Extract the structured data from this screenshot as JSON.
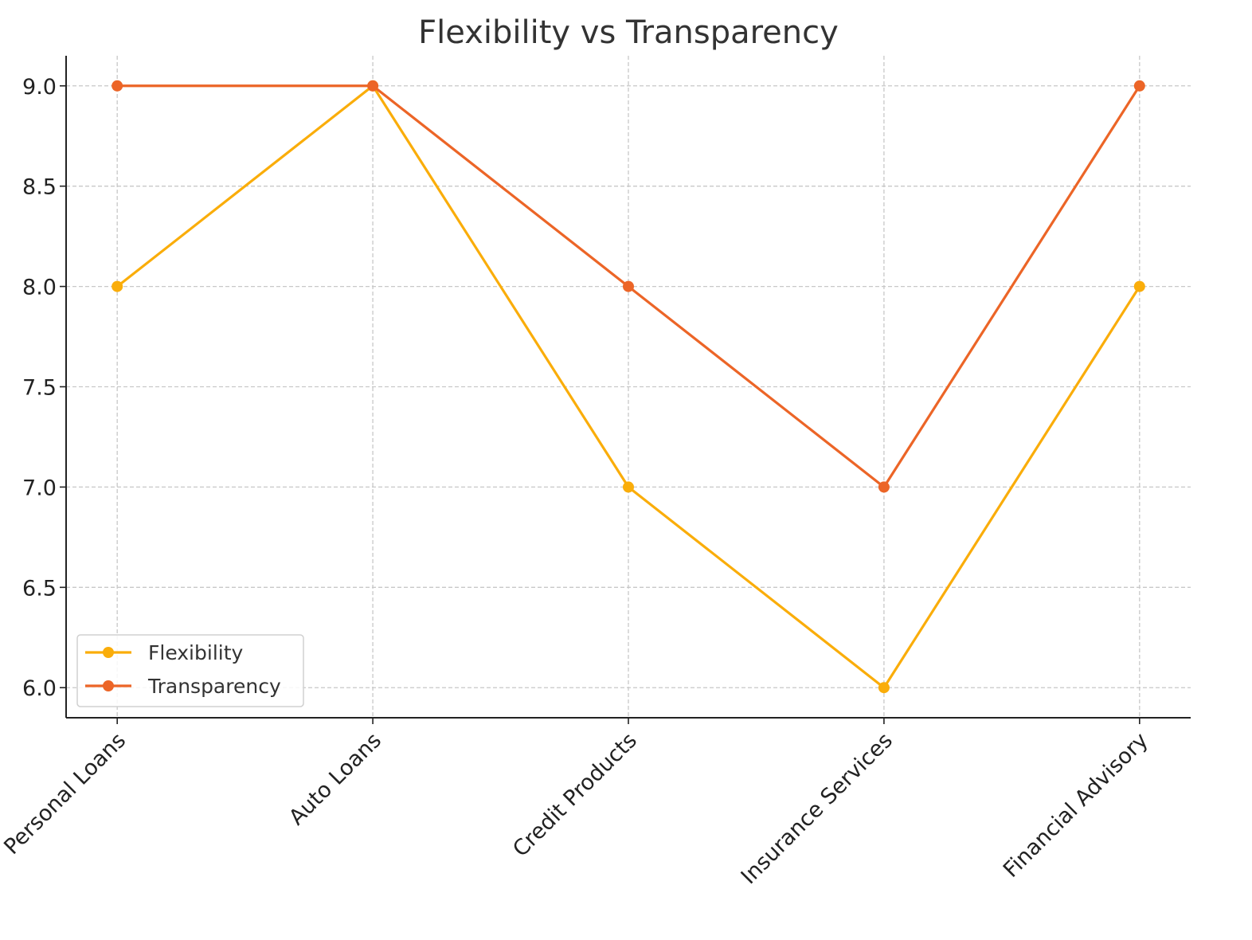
{
  "chart_data": {
    "type": "line",
    "title": "Flexibility vs Transparency",
    "xlabel": "",
    "ylabel": "",
    "categories": [
      "Personal Loans",
      "Auto Loans",
      "Credit Products",
      "Insurance Services",
      "Financial Advisory"
    ],
    "series": [
      {
        "name": "Flexibility",
        "values": [
          8,
          9,
          7,
          6,
          8
        ],
        "color": "#FAAD0A"
      },
      {
        "name": "Transparency",
        "values": [
          9,
          9,
          8,
          7,
          9
        ],
        "color": "#EC6527"
      }
    ],
    "ylim": [
      5.85,
      9.15
    ],
    "yticks": [
      "6.0",
      "6.5",
      "7.0",
      "7.5",
      "8.0",
      "8.5",
      "9.0"
    ],
    "grid": true,
    "legend": "lower-left",
    "marker": "circle"
  }
}
